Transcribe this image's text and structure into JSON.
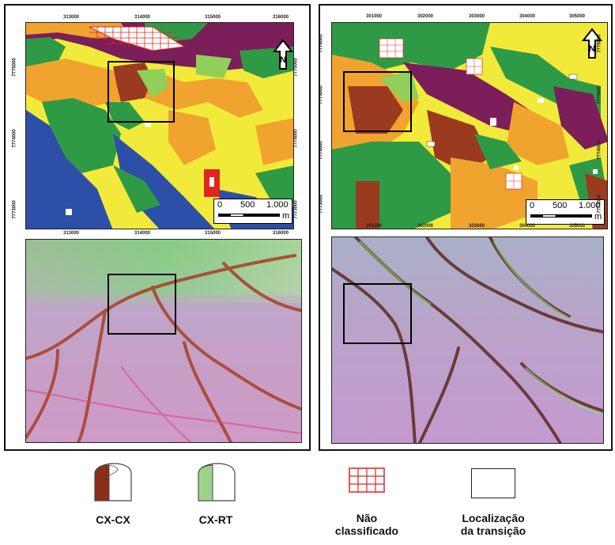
{
  "left_panel": {
    "x_ticks_top": [
      "313000",
      "314000",
      "315000",
      "316000"
    ],
    "x_ticks_bottom": [
      "313000",
      "314000",
      "315000",
      "316000"
    ],
    "y_ticks_left": [
      "7775000",
      "7774000",
      "7773000"
    ],
    "y_ticks_right": [
      "7775000",
      "7774000",
      "7773000"
    ],
    "scale": {
      "zero": "0",
      "mid": "500",
      "end": "1.000",
      "unit": "m"
    },
    "north_label": "N"
  },
  "right_panel": {
    "x_ticks_top": [
      "301000",
      "302000",
      "303000",
      "304000",
      "305000"
    ],
    "x_ticks_bottom": [
      "301000",
      "302000",
      "303000",
      "304000",
      "305000"
    ],
    "y_ticks_left": [
      "7776000",
      "7775000",
      "7774000",
      "7773000"
    ],
    "y_ticks_right": [
      "7776000",
      "7775000",
      "7774000",
      "7773000"
    ],
    "scale": {
      "zero": "0",
      "mid": "500",
      "end": "1.000",
      "unit": "m"
    },
    "north_label": "N"
  },
  "legend": {
    "cx_cx": "CX-CX",
    "cx_rt": "CX-RT",
    "nao_line1": "Não",
    "nao_line2": "classificado",
    "loc_line1": "Localização",
    "loc_line2": "da transição"
  },
  "colors": {
    "yellow": "#f2ea3a",
    "orange": "#f0a32e",
    "green": "#2e9a46",
    "lightgreen": "#8fcf5a",
    "blue": "#2d4fa8",
    "purple": "#7b1e5a",
    "brown": "#9a3a1f",
    "red": "#e0261f",
    "grid_red": "#e0261f"
  }
}
